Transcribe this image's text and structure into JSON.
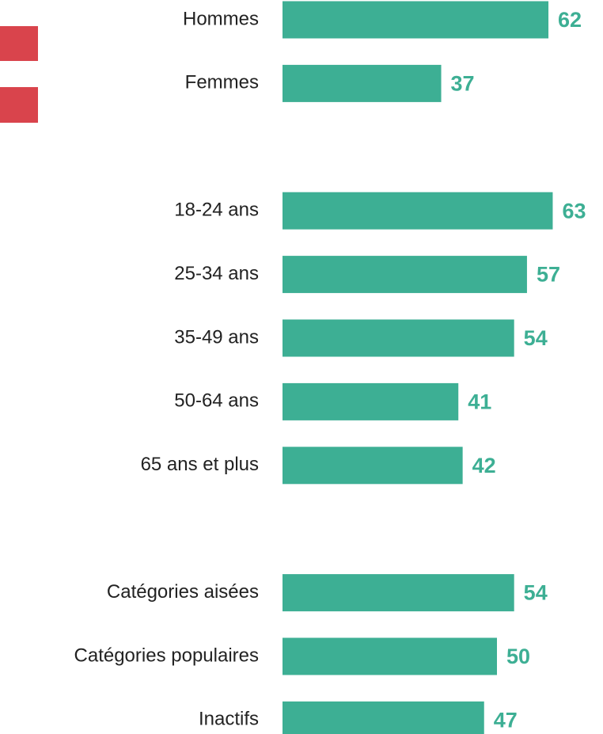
{
  "chart_data": {
    "type": "bar",
    "orientation": "horizontal",
    "categories": [
      "Hommes",
      "Femmes",
      null,
      "18-24 ans",
      "25-34 ans",
      "35-49 ans",
      "50-64 ans",
      "65 ans et plus",
      null,
      "Catégories aisées",
      "Catégories populaires",
      "Inactifs"
    ],
    "values": [
      62,
      37,
      null,
      63,
      57,
      54,
      41,
      42,
      null,
      54,
      50,
      47
    ],
    "color": "#3daf94"
  }
}
